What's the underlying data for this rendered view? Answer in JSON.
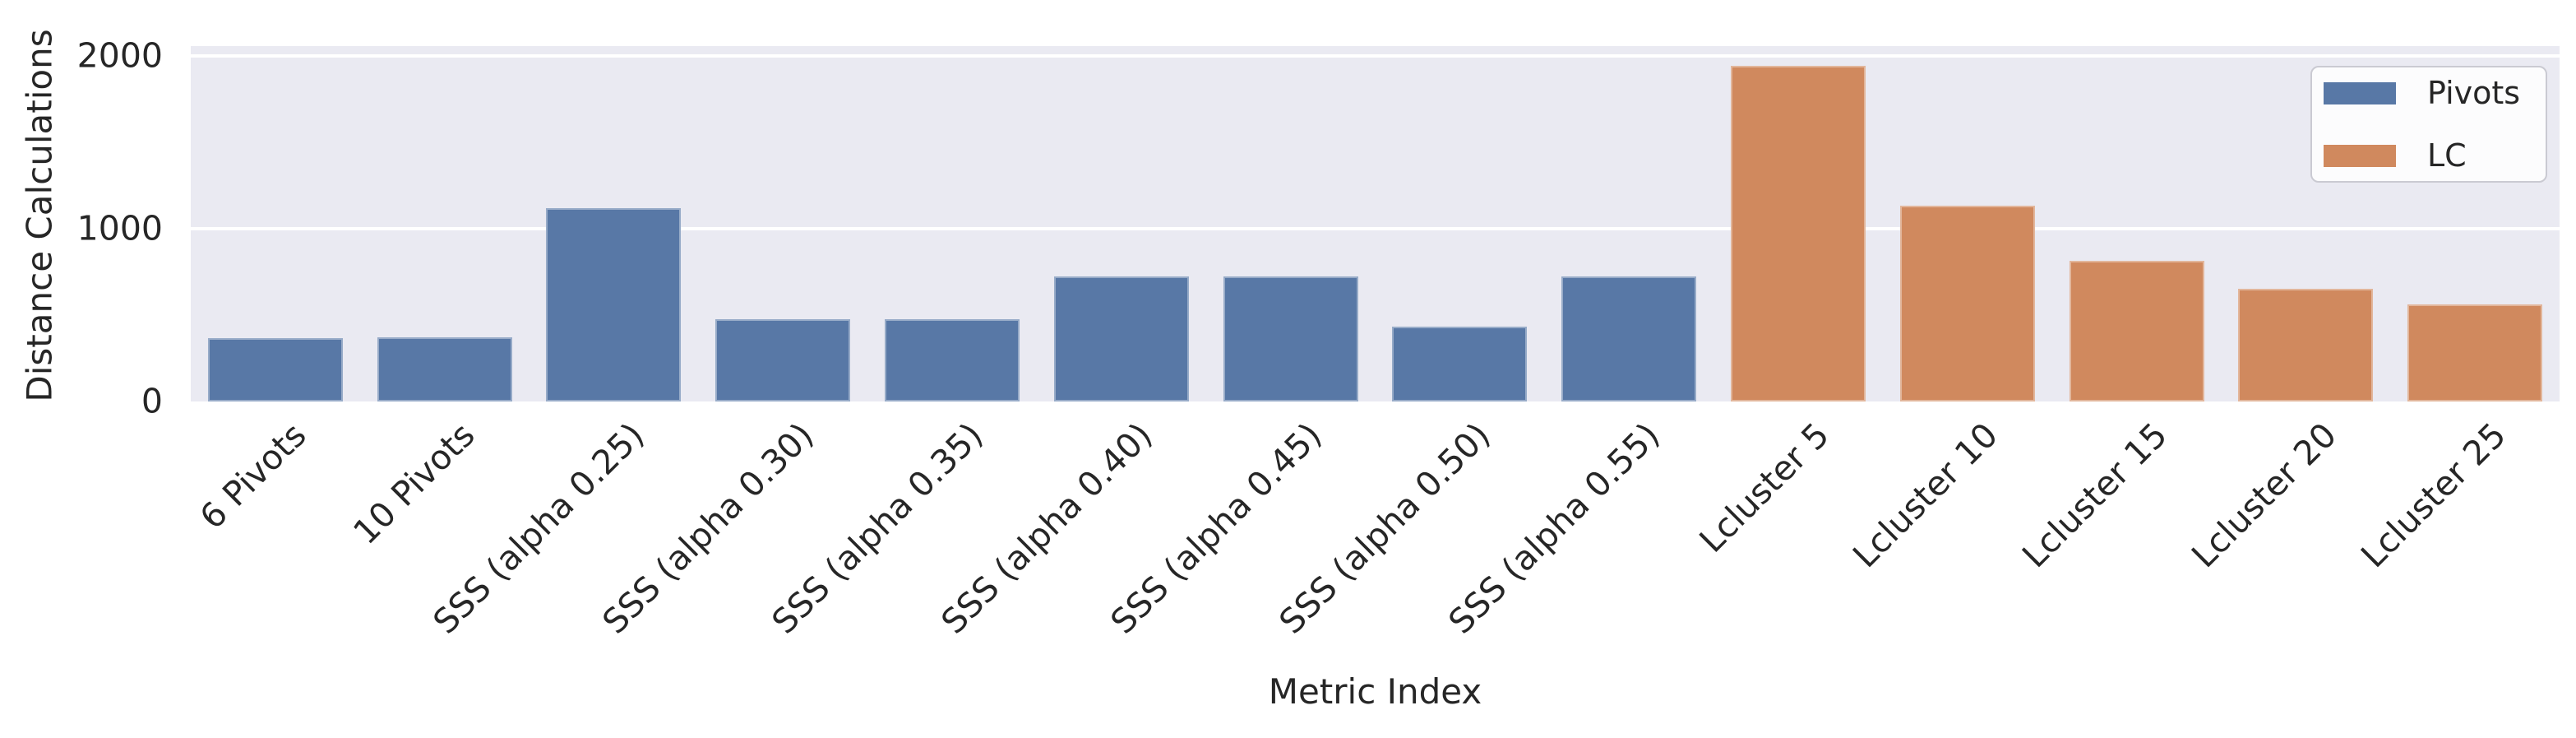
{
  "chart_data": {
    "type": "bar",
    "title": "",
    "xlabel": "Metric Index",
    "ylabel": "Distance Calculations",
    "ylim": [
      0,
      2055
    ],
    "yticks": [
      0,
      1000,
      2000
    ],
    "grid": "horizontal",
    "legend_position": "upper right",
    "style": "seaborn darkgrid",
    "colors": {
      "plot_background": "#eaeaf2",
      "figure_background": "#ffffff",
      "gridline": "#ffffff",
      "text": "#262626",
      "legend_background": "#fcfcfd",
      "legend_border": "#cacad2"
    },
    "series": [
      {
        "name": "Pivots",
        "color": "#5878a6"
      },
      {
        "name": "LC",
        "color": "#d0895e"
      }
    ],
    "categories": [
      "6 Pivots",
      "10 Pivots",
      "SSS (alpha 0.25)",
      "SSS (alpha 0.30)",
      "SSS (alpha 0.35)",
      "SSS (alpha 0.40)",
      "SSS (alpha 0.45)",
      "SSS (alpha 0.50)",
      "SSS (alpha 0.55)",
      "Lcluster 5",
      "Lcluster 10",
      "Lcluster 15",
      "Lcluster 20",
      "Lcluster 25"
    ],
    "bars": [
      {
        "label": "6 Pivots",
        "series": "Pivots",
        "value": 365
      },
      {
        "label": "10 Pivots",
        "series": "Pivots",
        "value": 370
      },
      {
        "label": "SSS (alpha 0.25)",
        "series": "Pivots",
        "value": 1120
      },
      {
        "label": "SSS (alpha 0.30)",
        "series": "Pivots",
        "value": 475
      },
      {
        "label": "SSS (alpha 0.35)",
        "series": "Pivots",
        "value": 475
      },
      {
        "label": "SSS (alpha 0.40)",
        "series": "Pivots",
        "value": 725
      },
      {
        "label": "SSS (alpha 0.45)",
        "series": "Pivots",
        "value": 725
      },
      {
        "label": "SSS (alpha 0.50)",
        "series": "Pivots",
        "value": 435
      },
      {
        "label": "SSS (alpha 0.55)",
        "series": "Pivots",
        "value": 725
      },
      {
        "label": "Lcluster 5",
        "series": "LC",
        "value": 1940
      },
      {
        "label": "Lcluster 10",
        "series": "LC",
        "value": 1130
      },
      {
        "label": "Lcluster 15",
        "series": "LC",
        "value": 815
      },
      {
        "label": "Lcluster 20",
        "series": "LC",
        "value": 650
      },
      {
        "label": "Lcluster 25",
        "series": "LC",
        "value": 560
      }
    ]
  }
}
